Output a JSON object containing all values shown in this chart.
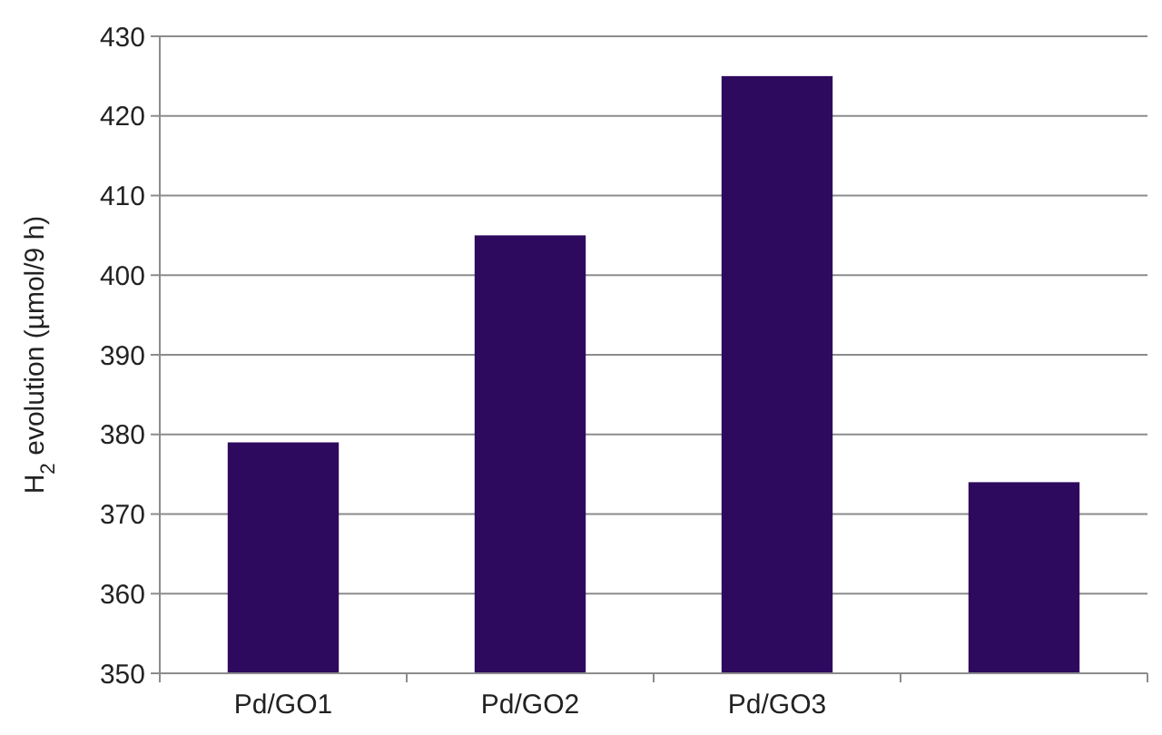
{
  "chart_data": {
    "type": "bar",
    "ylabel": "H$_{2}$ evolution (µmol/9 h)",
    "categories": [
      "Pd/GO1",
      "Pd/GO2",
      "Pd/GO3",
      null
    ],
    "values": [
      379,
      405,
      425,
      374
    ],
    "color": "#2e0a5e",
    "ylim": [
      350,
      430
    ],
    "yticks": [
      350,
      360,
      370,
      380,
      390,
      400,
      410,
      420,
      430
    ],
    "grid": "y"
  }
}
